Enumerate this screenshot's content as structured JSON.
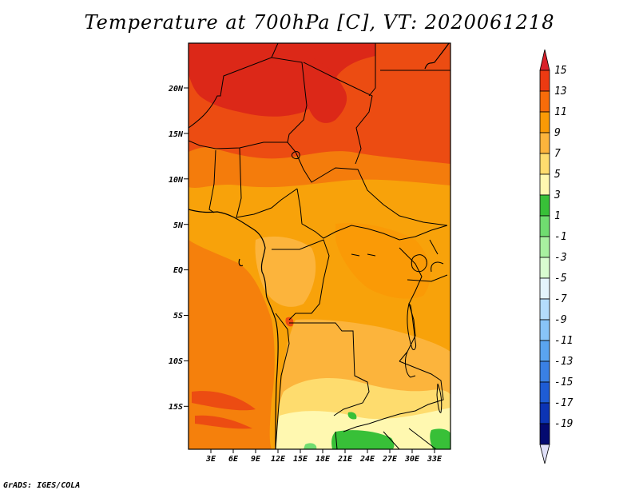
{
  "title": "Temperature at 700hPa [C], VT: 2020061218",
  "credit": "GrADS: IGES/COLA",
  "map": {
    "lat_ticks": [
      "20N",
      "15N",
      "10N",
      "5N",
      "EQ",
      "5S",
      "10S",
      "15S"
    ],
    "lon_ticks": [
      "3E",
      "6E",
      "9E",
      "12E",
      "15E",
      "18E",
      "21E",
      "24E",
      "27E",
      "30E",
      "33E"
    ]
  },
  "colorbar": {
    "labels": [
      "15",
      "13",
      "11",
      "9",
      "7",
      "5",
      "3",
      "1",
      "-1",
      "-3",
      "-5",
      "-7",
      "-9",
      "-11",
      "-13",
      "-15",
      "-17",
      "-19"
    ],
    "colors": [
      "#d8202a",
      "#ec3a12",
      "#f86c0a",
      "#fa9a06",
      "#fcb43c",
      "#fedc6e",
      "#fff8b0",
      "#38c038",
      "#70dc70",
      "#a8f0a0",
      "#d8fcd0",
      "#e4f4fc",
      "#b4dcfc",
      "#88c4f8",
      "#5aa4f0",
      "#3a80e4",
      "#1e5cd4",
      "#0c34b4",
      "#040a70",
      "#e0e0f8"
    ]
  }
}
